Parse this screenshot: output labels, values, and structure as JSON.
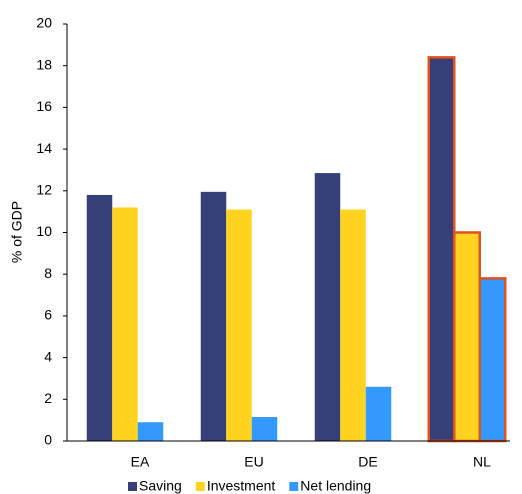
{
  "chart_data": {
    "type": "bar",
    "y_label": "% of GDP",
    "categories": [
      "EA",
      "EU",
      "DE",
      "NL"
    ],
    "series": [
      {
        "name": "Saving",
        "color": "#363f78",
        "values": [
          11.8,
          11.95,
          12.85,
          18.4
        ]
      },
      {
        "name": "Investment",
        "color": "#ffd320",
        "values": [
          11.2,
          11.1,
          11.1,
          10.0
        ]
      },
      {
        "name": "Net lending",
        "color": "#3399ff",
        "values": [
          0.9,
          1.15,
          2.6,
          7.8
        ]
      }
    ],
    "ylim": [
      0,
      20
    ],
    "yticks": [
      0,
      2,
      4,
      6,
      8,
      10,
      12,
      14,
      16,
      18,
      20
    ],
    "highlight_index": 3,
    "highlight_color": "#e0521e",
    "legend": "bottom"
  }
}
